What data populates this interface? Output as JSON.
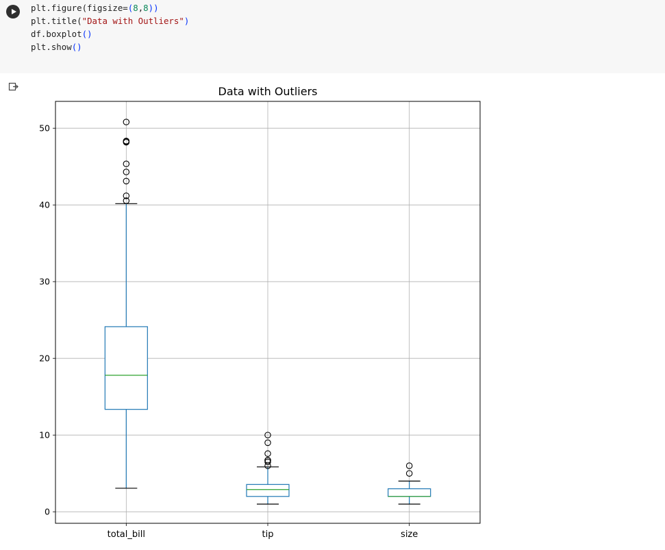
{
  "cell": {
    "code_lines": [
      [
        {
          "t": "plt.figure(figsize="
        },
        {
          "t": "(",
          "c": "par"
        },
        {
          "t": "8",
          "c": "num"
        },
        {
          "t": ","
        },
        {
          "t": "8",
          "c": "num"
        },
        {
          "t": "))",
          "c": "par"
        }
      ],
      [
        {
          "t": "plt.title("
        },
        {
          "t": "\"Data with Outliers\"",
          "c": "str"
        },
        {
          "t": ")",
          "c": "par"
        }
      ],
      [
        {
          "t": "df.boxplot"
        },
        {
          "t": "()",
          "c": "par"
        }
      ],
      [
        {
          "t": "plt.show"
        },
        {
          "t": "()",
          "c": "par"
        }
      ]
    ],
    "run_icon": "play-icon",
    "output_icon": "output-arrow-icon"
  },
  "chart_data": {
    "type": "boxplot",
    "title": "Data with Outliers",
    "xlabel": "",
    "ylabel": "",
    "ylim": [
      -1.5,
      53.5
    ],
    "yticks": [
      0,
      10,
      20,
      30,
      40,
      50
    ],
    "grid": true,
    "categories": [
      "total_bill",
      "tip",
      "size"
    ],
    "colors": {
      "box": "#1f77b4",
      "median": "#2ca02c",
      "whisker_cap": "#000000",
      "grid": "#b0b0b0"
    },
    "boxes": [
      {
        "name": "total_bill",
        "whislo": 3.07,
        "q1": 13.35,
        "med": 17.8,
        "q3": 24.13,
        "whishi": 40.17,
        "fliers": [
          40.55,
          41.19,
          43.11,
          44.3,
          45.35,
          48.17,
          48.27,
          48.33,
          50.81
        ]
      },
      {
        "name": "tip",
        "whislo": 1.0,
        "q1": 2.0,
        "med": 2.9,
        "q3": 3.56,
        "whishi": 5.85,
        "fliers": [
          6.0,
          6.5,
          6.7,
          6.73,
          7.58,
          9.0,
          10.0
        ]
      },
      {
        "name": "size",
        "whislo": 1,
        "q1": 2,
        "med": 2,
        "q3": 3,
        "whishi": 4,
        "fliers": [
          5,
          6
        ]
      }
    ]
  }
}
